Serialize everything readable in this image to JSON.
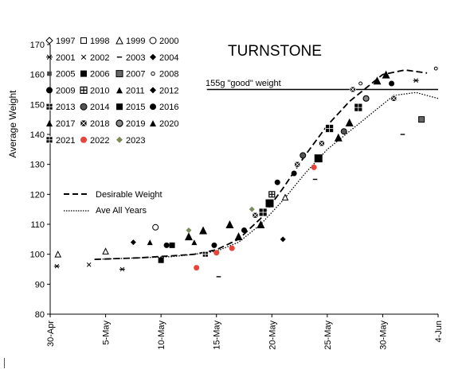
{
  "chart_data": {
    "type": "scatter",
    "title": "TURNSTONE",
    "xlabel": "",
    "ylabel": "Average Weight",
    "x_start_date": "2024-04-30",
    "x_tick_labels": [
      "30-Apr",
      "5-May",
      "10-May",
      "15-May",
      "20-May",
      "25-May",
      "30-May",
      "4-Jun"
    ],
    "y_ticks": [
      80,
      90,
      100,
      110,
      120,
      130,
      140,
      150,
      160,
      170
    ],
    "xlim": [
      0,
      35
    ],
    "ylim": [
      80,
      170
    ],
    "reference_line": {
      "label": "155g \"good\" weight",
      "y": 155,
      "x_range": [
        15,
        35
      ]
    },
    "curves": [
      {
        "name": "Desirable Weight",
        "style": "dashed",
        "points": [
          [
            4,
            98.3
          ],
          [
            8,
            98.8
          ],
          [
            11,
            99.5
          ],
          [
            13,
            100
          ],
          [
            15,
            101.5
          ],
          [
            17,
            105
          ],
          [
            19,
            112
          ],
          [
            21,
            122
          ],
          [
            23,
            133
          ],
          [
            25,
            143
          ],
          [
            27,
            151
          ],
          [
            29,
            157
          ],
          [
            30,
            160
          ],
          [
            32,
            161.5
          ],
          [
            34,
            160.5
          ]
        ]
      },
      {
        "name": "Ave All Years",
        "style": "dotted",
        "points": [
          [
            4,
            98.3
          ],
          [
            8,
            98.8
          ],
          [
            11,
            99.2
          ],
          [
            13,
            100
          ],
          [
            15,
            101
          ],
          [
            17,
            104
          ],
          [
            19,
            110
          ],
          [
            21,
            118
          ],
          [
            23,
            127
          ],
          [
            25,
            135
          ],
          [
            27,
            141
          ],
          [
            29,
            147
          ],
          [
            30,
            150
          ],
          [
            31,
            153
          ],
          [
            33,
            154
          ],
          [
            35,
            152
          ]
        ]
      }
    ],
    "legend": {
      "position": "top-left",
      "entries": [
        {
          "year": "1997",
          "marker": "diamond-open"
        },
        {
          "year": "1998",
          "marker": "square-open"
        },
        {
          "year": "1999",
          "marker": "triangle-open"
        },
        {
          "year": "2000",
          "marker": "circle-open"
        },
        {
          "year": "2001",
          "marker": "asterisk"
        },
        {
          "year": "2002",
          "marker": "cross"
        },
        {
          "year": "2003",
          "marker": "dash"
        },
        {
          "year": "2004",
          "marker": "diamond-filled"
        },
        {
          "year": "2005",
          "marker": "small-square-pattern"
        },
        {
          "year": "2006",
          "marker": "square-filled"
        },
        {
          "year": "2007",
          "marker": "square-patterned"
        },
        {
          "year": "2008",
          "marker": "circle-small-open"
        },
        {
          "year": "2009",
          "marker": "circle-filled"
        },
        {
          "year": "2010",
          "marker": "square-cross"
        },
        {
          "year": "2011",
          "marker": "triangle-filled"
        },
        {
          "year": "2012",
          "marker": "diamond-filled"
        },
        {
          "year": "2013",
          "marker": "square-grid"
        },
        {
          "year": "2014",
          "marker": "circle-patterned"
        },
        {
          "year": "2015",
          "marker": "square-filled"
        },
        {
          "year": "2016",
          "marker": "circle-filled"
        },
        {
          "year": "2017",
          "marker": "triangle-filled"
        },
        {
          "year": "2018",
          "marker": "square-x"
        },
        {
          "year": "2019",
          "marker": "circle-hatched"
        },
        {
          "year": "2020",
          "marker": "triangle-filled"
        },
        {
          "year": "2021",
          "marker": "square-grid"
        },
        {
          "year": "2022",
          "marker": "circle-red"
        },
        {
          "year": "2023",
          "marker": "diamond-olive"
        }
      ]
    },
    "line_legend": [
      {
        "label": "Desirable Weight",
        "style": "dashed"
      },
      {
        "label": "Ave All Years",
        "style": "dotted"
      }
    ],
    "scatter_points": [
      {
        "year": "2001",
        "x": 0.6,
        "y": 96
      },
      {
        "year": "1999",
        "x": 0.7,
        "y": 100
      },
      {
        "year": "2002",
        "x": 3.5,
        "y": 96.5
      },
      {
        "year": "1999",
        "x": 5.0,
        "y": 101
      },
      {
        "year": "2001",
        "x": 6.5,
        "y": 95
      },
      {
        "year": "2004",
        "x": 7.5,
        "y": 104
      },
      {
        "year": "2011",
        "x": 9.0,
        "y": 104
      },
      {
        "year": "2000",
        "x": 9.5,
        "y": 109
      },
      {
        "year": "2006",
        "x": 10.0,
        "y": 98
      },
      {
        "year": "2009",
        "x": 10.5,
        "y": 103
      },
      {
        "year": "2015",
        "x": 11.0,
        "y": 103
      },
      {
        "year": "2017",
        "x": 12.5,
        "y": 106
      },
      {
        "year": "2023",
        "x": 12.5,
        "y": 108
      },
      {
        "year": "2011",
        "x": 13.0,
        "y": 104
      },
      {
        "year": "2020",
        "x": 13.8,
        "y": 108
      },
      {
        "year": "2022",
        "x": 13.2,
        "y": 95.5
      },
      {
        "year": "2013",
        "x": 14.0,
        "y": 100
      },
      {
        "year": "2016",
        "x": 14.8,
        "y": 103
      },
      {
        "year": "2022",
        "x": 15.0,
        "y": 100.5
      },
      {
        "year": "2003",
        "x": 15.2,
        "y": 92.5
      },
      {
        "year": "2020",
        "x": 16.2,
        "y": 110
      },
      {
        "year": "2022",
        "x": 16.4,
        "y": 102
      },
      {
        "year": "2011",
        "x": 17.0,
        "y": 106
      },
      {
        "year": "2009",
        "x": 17.5,
        "y": 108
      },
      {
        "year": "2023",
        "x": 18.2,
        "y": 115
      },
      {
        "year": "2018",
        "x": 18.5,
        "y": 113
      },
      {
        "year": "2011",
        "x": 19.0,
        "y": 110
      },
      {
        "year": "2013",
        "x": 19.2,
        "y": 114
      },
      {
        "year": "2006",
        "x": 19.8,
        "y": 117
      },
      {
        "year": "2010",
        "x": 20.0,
        "y": 120
      },
      {
        "year": "2016",
        "x": 20.5,
        "y": 124
      },
      {
        "year": "2004",
        "x": 21.0,
        "y": 105
      },
      {
        "year": "1999",
        "x": 21.2,
        "y": 119
      },
      {
        "year": "2009",
        "x": 22.0,
        "y": 127
      },
      {
        "year": "2018",
        "x": 22.3,
        "y": 130
      },
      {
        "year": "2014",
        "x": 22.8,
        "y": 133
      },
      {
        "year": "2022",
        "x": 23.8,
        "y": 129
      },
      {
        "year": "2003",
        "x": 23.9,
        "y": 125
      },
      {
        "year": "2006",
        "x": 24.2,
        "y": 132
      },
      {
        "year": "2018",
        "x": 24.5,
        "y": 137
      },
      {
        "year": "2013",
        "x": 25.2,
        "y": 142
      },
      {
        "year": "2020",
        "x": 26.0,
        "y": 139
      },
      {
        "year": "2014",
        "x": 26.5,
        "y": 141
      },
      {
        "year": "2017",
        "x": 27.0,
        "y": 144
      },
      {
        "year": "2018",
        "x": 27.3,
        "y": 155
      },
      {
        "year": "2013",
        "x": 27.8,
        "y": 149
      },
      {
        "year": "2008",
        "x": 28.0,
        "y": 157
      },
      {
        "year": "2019",
        "x": 28.5,
        "y": 152
      },
      {
        "year": "2011",
        "x": 29.5,
        "y": 158
      },
      {
        "year": "2020",
        "x": 30.3,
        "y": 160
      },
      {
        "year": "2016",
        "x": 30.8,
        "y": 157
      },
      {
        "year": "2018",
        "x": 31.0,
        "y": 152
      },
      {
        "year": "2003",
        "x": 31.8,
        "y": 140
      },
      {
        "year": "2001",
        "x": 33.0,
        "y": 158
      },
      {
        "year": "2007",
        "x": 33.5,
        "y": 145
      },
      {
        "year": "2008",
        "x": 34.8,
        "y": 162
      }
    ]
  }
}
